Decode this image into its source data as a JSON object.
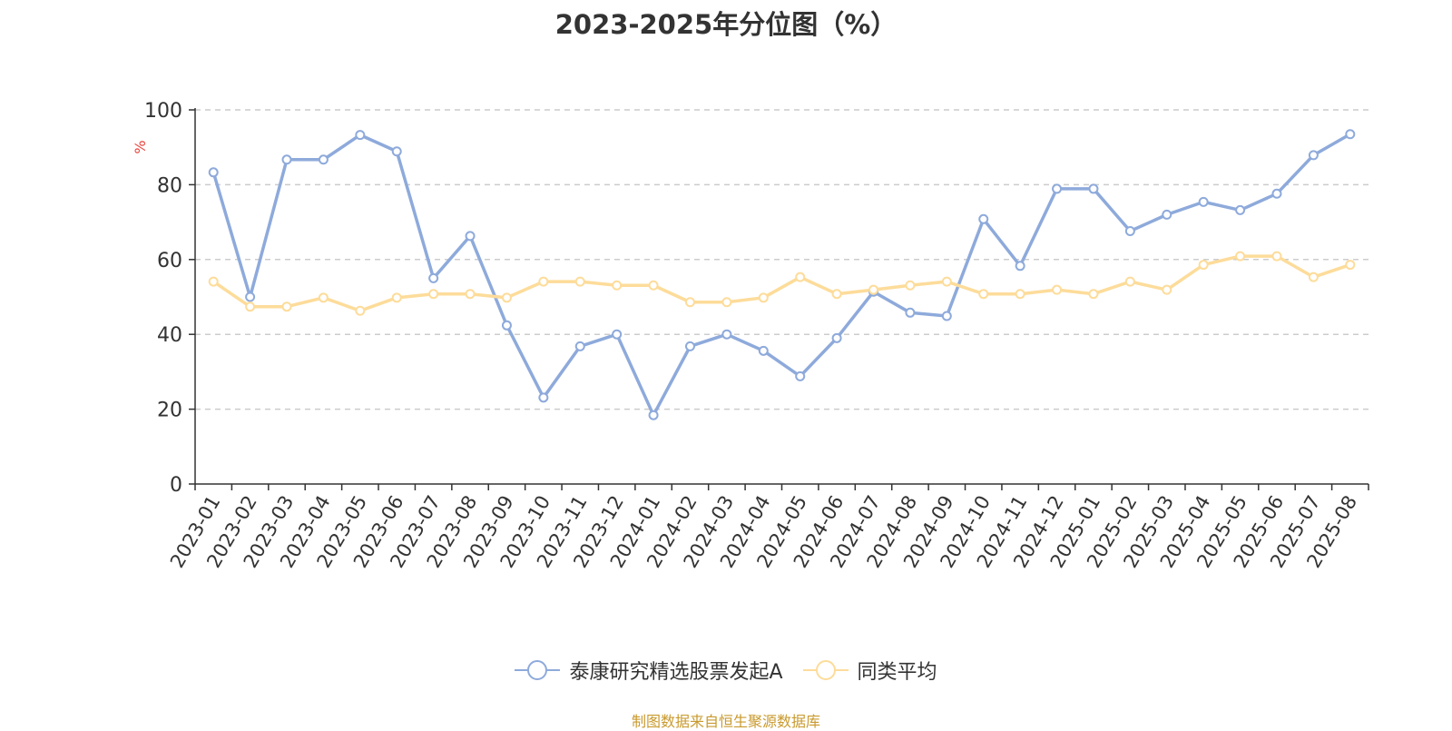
{
  "chart_data": {
    "type": "line",
    "title": "2023-2025年分位图（%）",
    "ylabel": "%",
    "ylim": [
      0,
      100
    ],
    "yticks": [
      0,
      20,
      40,
      60,
      80,
      100
    ],
    "grid": true,
    "legend_position": "bottom",
    "categories": [
      "2023-01",
      "2023-02",
      "2023-03",
      "2023-04",
      "2023-05",
      "2023-06",
      "2023-07",
      "2023-08",
      "2023-09",
      "2023-10",
      "2023-11",
      "2023-12",
      "2024-01",
      "2024-02",
      "2024-03",
      "2024-04",
      "2024-05",
      "2024-06",
      "2024-07",
      "2024-08",
      "2024-09",
      "2024-10",
      "2024-11",
      "2024-12",
      "2025-01",
      "2025-02",
      "2025-03",
      "2025-04",
      "2025-05",
      "2025-06",
      "2025-07",
      "2025-08"
    ],
    "series": [
      {
        "name": "泰康研究精选股票发起A",
        "color": "#8eaadb",
        "values": [
          83.3,
          50.0,
          86.7,
          86.7,
          93.3,
          88.9,
          55.0,
          66.3,
          42.4,
          23.1,
          36.8,
          40.0,
          18.4,
          36.8,
          40.0,
          35.6,
          28.8,
          39.0,
          51.4,
          45.8,
          44.9,
          70.8,
          58.3,
          78.9,
          78.9,
          67.6,
          72.0,
          75.4,
          73.2,
          77.6,
          87.9,
          93.5
        ]
      },
      {
        "name": "同类平均",
        "color": "#fddc9a",
        "values": [
          54.1,
          47.4,
          47.4,
          49.8,
          46.3,
          49.8,
          50.8,
          50.8,
          49.8,
          54.1,
          54.1,
          53.1,
          53.1,
          48.6,
          48.6,
          49.8,
          55.3,
          50.8,
          51.9,
          53.1,
          54.1,
          50.8,
          50.8,
          51.9,
          50.8,
          54.1,
          51.9,
          58.6,
          60.9,
          60.9,
          55.3,
          58.6
        ]
      }
    ]
  },
  "source_note": "制图数据来自恒生聚源数据库"
}
